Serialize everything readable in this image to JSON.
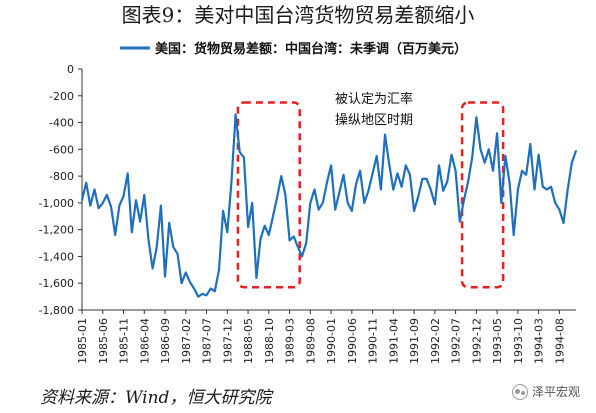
{
  "figure_title": "图表9：美对中国台湾货物贸易差额缩小",
  "source": "资料来源：Wind，恒大研究院",
  "watermark": "泽平宏观",
  "chart_data": {
    "type": "line",
    "grid": false,
    "legend_placement": "top-center",
    "series": [
      {
        "name": "美国：货物贸易差额：中国台湾：未季调（百万美元）",
        "color": "#1f6fc0",
        "x": [
          "1985-01",
          "1985-02",
          "1985-03",
          "1985-04",
          "1985-05",
          "1985-06",
          "1985-07",
          "1985-08",
          "1985-09",
          "1985-10",
          "1985-11",
          "1985-12",
          "1986-01",
          "1986-02",
          "1986-03",
          "1986-04",
          "1986-05",
          "1986-06",
          "1986-07",
          "1986-08",
          "1986-09",
          "1986-10",
          "1986-11",
          "1986-12",
          "1987-01",
          "1987-02",
          "1987-03",
          "1987-04",
          "1987-05",
          "1987-06",
          "1987-07",
          "1987-08",
          "1987-09",
          "1987-10",
          "1987-11",
          "1987-12",
          "1988-01",
          "1988-02",
          "1988-03",
          "1988-04",
          "1988-05",
          "1988-06",
          "1988-07",
          "1988-08",
          "1988-09",
          "1988-10",
          "1988-11",
          "1988-12",
          "1989-01",
          "1989-02",
          "1989-03",
          "1989-04",
          "1989-05",
          "1989-06",
          "1989-07",
          "1989-08",
          "1989-09",
          "1989-10",
          "1989-11",
          "1989-12",
          "1990-01",
          "1990-02",
          "1990-03",
          "1990-04",
          "1990-05",
          "1990-06",
          "1990-07",
          "1990-08",
          "1990-09",
          "1990-10",
          "1990-11",
          "1990-12",
          "1991-01",
          "1991-02",
          "1991-03",
          "1991-04",
          "1991-05",
          "1991-06",
          "1991-07",
          "1991-08",
          "1991-09",
          "1991-10",
          "1991-11",
          "1991-12",
          "1992-01",
          "1992-02",
          "1992-03",
          "1992-04",
          "1992-05",
          "1992-06",
          "1992-07",
          "1992-08",
          "1992-09",
          "1992-10",
          "1992-11",
          "1992-12",
          "1993-01",
          "1993-02",
          "1993-03",
          "1993-04",
          "1993-05",
          "1993-06",
          "1993-07",
          "1993-08",
          "1993-09",
          "1993-10",
          "1993-11",
          "1993-12",
          "1994-01",
          "1994-02",
          "1994-03",
          "1994-04",
          "1994-05",
          "1994-06",
          "1994-07",
          "1994-08",
          "1994-09",
          "1994-10",
          "1994-11",
          "1994-12"
        ],
        "values": [
          -980,
          -850,
          -1020,
          -900,
          -1040,
          -1000,
          -940,
          -1030,
          -1240,
          -1020,
          -950,
          -780,
          -1220,
          -980,
          -1140,
          -940,
          -1270,
          -1490,
          -1330,
          -1020,
          -1550,
          -1150,
          -1330,
          -1380,
          -1600,
          -1520,
          -1590,
          -1640,
          -1700,
          -1680,
          -1690,
          -1640,
          -1660,
          -1500,
          -1060,
          -1220,
          -850,
          -340,
          -620,
          -660,
          -1180,
          -1000,
          -1560,
          -1270,
          -1170,
          -1240,
          -1100,
          -960,
          -800,
          -940,
          -1280,
          -1250,
          -1330,
          -1400,
          -1300,
          -1000,
          -900,
          -1050,
          -1000,
          -850,
          -720,
          -1050,
          -920,
          -790,
          -1000,
          -1060,
          -860,
          -760,
          -1000,
          -910,
          -780,
          -650,
          -900,
          -490,
          -710,
          -900,
          -780,
          -880,
          -720,
          -790,
          -1060,
          -950,
          -820,
          -820,
          -900,
          -1010,
          -720,
          -910,
          -840,
          -640,
          -760,
          -1140,
          -980,
          -840,
          -660,
          -360,
          -600,
          -700,
          -600,
          -760,
          -480,
          -1000,
          -650,
          -850,
          -1240,
          -900,
          -760,
          -790,
          -560,
          -900,
          -640,
          -880,
          -900,
          -880,
          -1000,
          -1050,
          -1150,
          -900,
          -700,
          -610
        ]
      }
    ],
    "ylim": [
      -1800,
      0
    ],
    "yticks": [
      0,
      -200,
      -400,
      -600,
      -800,
      -1000,
      -1200,
      -1400,
      -1600,
      -1800
    ],
    "ytick_labels": [
      "0",
      "-200",
      "-400",
      "-600",
      "-800",
      "-1,000",
      "-1,200",
      "-1,400",
      "-1,600",
      "-1,800"
    ],
    "xtick_labels": [
      "1985-01",
      "1985-06",
      "1985-11",
      "1986-04",
      "1986-09",
      "1987-02",
      "1987-07",
      "1987-12",
      "1988-05",
      "1988-10",
      "1989-03",
      "1989-08",
      "1990-01",
      "1990-06",
      "1990-11",
      "1991-04",
      "1991-09",
      "1992-02",
      "1992-07",
      "1992-12",
      "1993-05",
      "1993-10",
      "1994-03",
      "1994-08"
    ],
    "annotation": {
      "lines": [
        "被认定为汇率",
        "操纵地区时期"
      ],
      "color": "#e8201f",
      "highlight_periods": [
        {
          "start": "1988-04",
          "end": "1989-04"
        },
        {
          "start": "1992-10",
          "end": "1993-05"
        }
      ]
    }
  }
}
